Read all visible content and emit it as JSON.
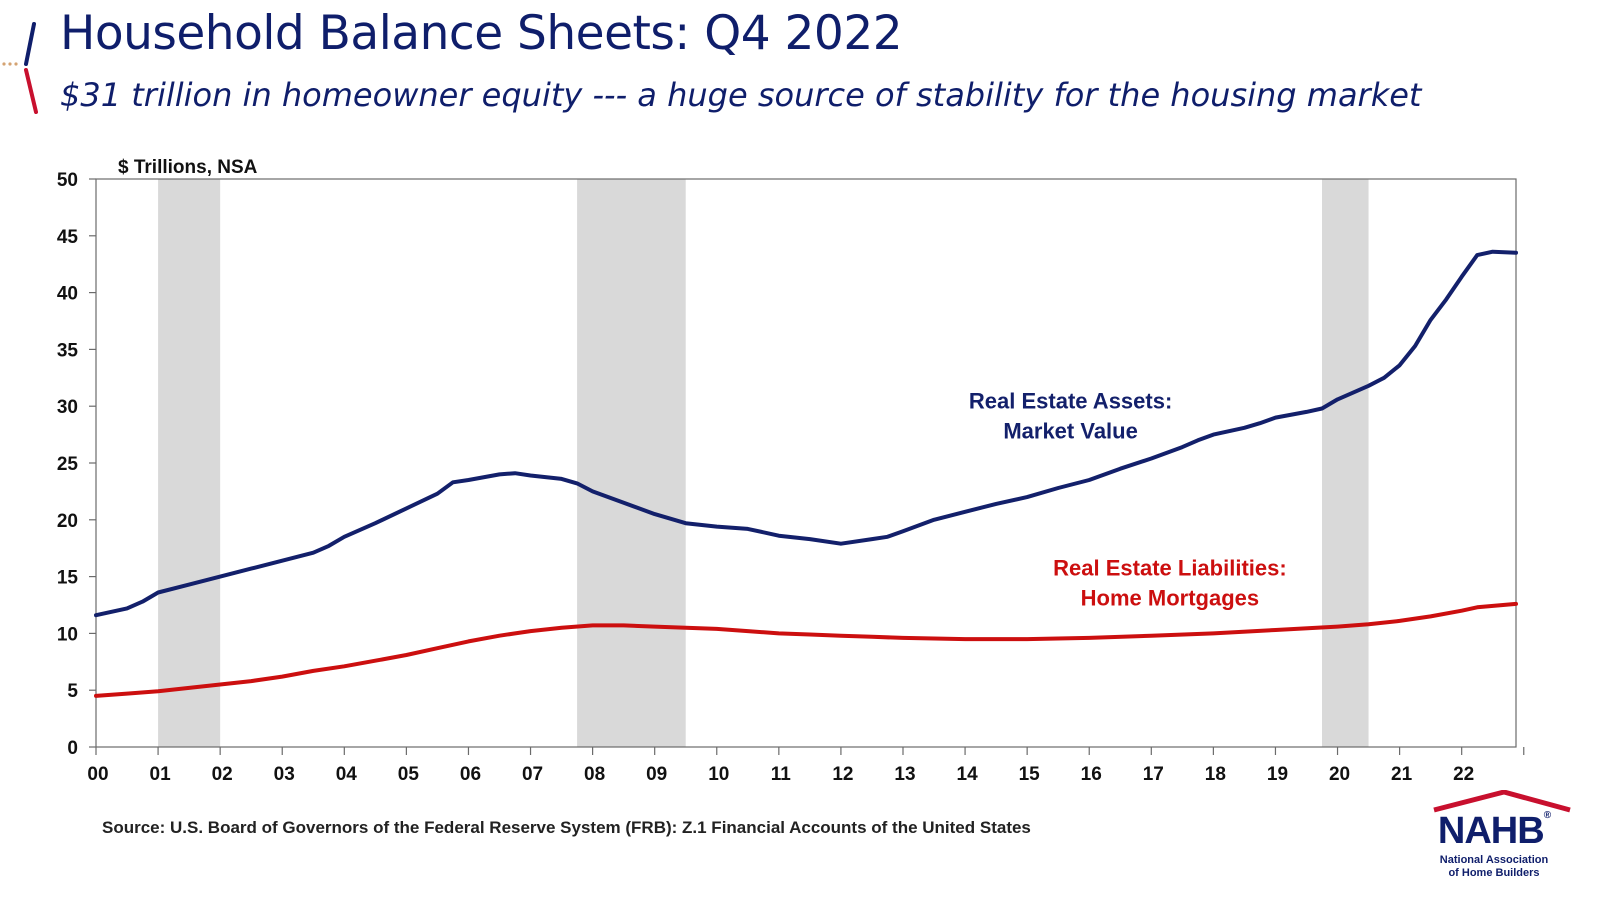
{
  "header": {
    "title": "Household Balance Sheets: Q4 2022",
    "subtitle": "$31 trillion in homeowner equity --- a huge source of stability for the housing market"
  },
  "footer": {
    "source": "Source:  U.S. Board of Governors of the Federal Reserve System (FRB): Z.1 Financial Accounts of the United States"
  },
  "logo": {
    "wordmark": "NAHB",
    "registered": "®",
    "line1": "National Association",
    "line2": "of Home Builders"
  },
  "colors": {
    "assets": "#13206b",
    "liabilities": "#cc0f0f",
    "recession": "#d9d9d9",
    "accent_red": "#c8102e",
    "title": "#0f1e6b"
  },
  "chart_data": {
    "type": "line",
    "ylabel": "$ Trillions, NSA",
    "ylim": [
      0,
      50
    ],
    "yticks": [
      0,
      5,
      10,
      15,
      20,
      25,
      30,
      35,
      40,
      45,
      50
    ],
    "xlim": [
      2000.0,
      2022.875
    ],
    "xticks": [
      "00",
      "01",
      "02",
      "03",
      "04",
      "05",
      "06",
      "07",
      "08",
      "09",
      "10",
      "11",
      "12",
      "13",
      "14",
      "15",
      "16",
      "17",
      "18",
      "19",
      "20",
      "21",
      "22"
    ],
    "recessions": [
      [
        2001.0,
        2002.0
      ],
      [
        2007.75,
        2009.5
      ],
      [
        2019.75,
        2020.5
      ]
    ],
    "grid": false,
    "series": [
      {
        "name": "Real Estate Assets: Market Value",
        "label_lines": [
          "Real Estate Assets:",
          "Market Value"
        ],
        "label_anchor": [
          2015.7,
          29.8
        ],
        "color": "#13206b",
        "points": [
          [
            2000.0,
            11.6
          ],
          [
            2000.5,
            12.2
          ],
          [
            2000.75,
            12.8
          ],
          [
            2001.0,
            13.6
          ],
          [
            2001.5,
            14.3
          ],
          [
            2002.0,
            15.0
          ],
          [
            2002.5,
            15.7
          ],
          [
            2003.0,
            16.4
          ],
          [
            2003.5,
            17.1
          ],
          [
            2003.75,
            17.7
          ],
          [
            2004.0,
            18.5
          ],
          [
            2004.5,
            19.7
          ],
          [
            2005.0,
            21.0
          ],
          [
            2005.5,
            22.3
          ],
          [
            2005.75,
            23.3
          ],
          [
            2006.0,
            23.5
          ],
          [
            2006.5,
            24.0
          ],
          [
            2006.75,
            24.1
          ],
          [
            2007.0,
            23.9
          ],
          [
            2007.5,
            23.6
          ],
          [
            2007.75,
            23.2
          ],
          [
            2008.0,
            22.5
          ],
          [
            2008.5,
            21.5
          ],
          [
            2009.0,
            20.5
          ],
          [
            2009.5,
            19.7
          ],
          [
            2010.0,
            19.4
          ],
          [
            2010.5,
            19.2
          ],
          [
            2011.0,
            18.6
          ],
          [
            2011.5,
            18.3
          ],
          [
            2012.0,
            17.9
          ],
          [
            2012.5,
            18.3
          ],
          [
            2012.75,
            18.5
          ],
          [
            2013.0,
            19.0
          ],
          [
            2013.5,
            20.0
          ],
          [
            2014.0,
            20.7
          ],
          [
            2014.5,
            21.4
          ],
          [
            2015.0,
            22.0
          ],
          [
            2015.5,
            22.8
          ],
          [
            2016.0,
            23.5
          ],
          [
            2016.5,
            24.5
          ],
          [
            2017.0,
            25.4
          ],
          [
            2017.5,
            26.4
          ],
          [
            2017.75,
            27.0
          ],
          [
            2018.0,
            27.5
          ],
          [
            2018.5,
            28.1
          ],
          [
            2018.75,
            28.5
          ],
          [
            2019.0,
            29.0
          ],
          [
            2019.5,
            29.5
          ],
          [
            2019.75,
            29.8
          ],
          [
            2020.0,
            30.6
          ],
          [
            2020.5,
            31.8
          ],
          [
            2020.75,
            32.5
          ],
          [
            2021.0,
            33.6
          ],
          [
            2021.25,
            35.3
          ],
          [
            2021.5,
            37.6
          ],
          [
            2021.75,
            39.4
          ],
          [
            2022.0,
            41.4
          ],
          [
            2022.25,
            43.3
          ],
          [
            2022.5,
            43.6
          ],
          [
            2022.875,
            43.5
          ]
        ]
      },
      {
        "name": "Real Estate Liabilities: Home Mortgages",
        "label_lines": [
          "Real Estate Liabilities:",
          "Home Mortgages"
        ],
        "label_anchor": [
          2017.3,
          15.1
        ],
        "color": "#cc0f0f",
        "points": [
          [
            2000.0,
            4.5
          ],
          [
            2000.5,
            4.7
          ],
          [
            2001.0,
            4.9
          ],
          [
            2001.5,
            5.2
          ],
          [
            2002.0,
            5.5
          ],
          [
            2002.5,
            5.8
          ],
          [
            2003.0,
            6.2
          ],
          [
            2003.5,
            6.7
          ],
          [
            2004.0,
            7.1
          ],
          [
            2004.5,
            7.6
          ],
          [
            2005.0,
            8.1
          ],
          [
            2005.5,
            8.7
          ],
          [
            2006.0,
            9.3
          ],
          [
            2006.5,
            9.8
          ],
          [
            2007.0,
            10.2
          ],
          [
            2007.5,
            10.5
          ],
          [
            2008.0,
            10.7
          ],
          [
            2008.5,
            10.7
          ],
          [
            2009.0,
            10.6
          ],
          [
            2009.5,
            10.5
          ],
          [
            2010.0,
            10.4
          ],
          [
            2010.5,
            10.2
          ],
          [
            2011.0,
            10.0
          ],
          [
            2011.5,
            9.9
          ],
          [
            2012.0,
            9.8
          ],
          [
            2012.5,
            9.7
          ],
          [
            2013.0,
            9.6
          ],
          [
            2014.0,
            9.5
          ],
          [
            2015.0,
            9.5
          ],
          [
            2016.0,
            9.6
          ],
          [
            2017.0,
            9.8
          ],
          [
            2018.0,
            10.0
          ],
          [
            2019.0,
            10.3
          ],
          [
            2020.0,
            10.6
          ],
          [
            2020.5,
            10.8
          ],
          [
            2021.0,
            11.1
          ],
          [
            2021.5,
            11.5
          ],
          [
            2022.0,
            12.0
          ],
          [
            2022.25,
            12.3
          ],
          [
            2022.875,
            12.6
          ]
        ]
      }
    ]
  }
}
